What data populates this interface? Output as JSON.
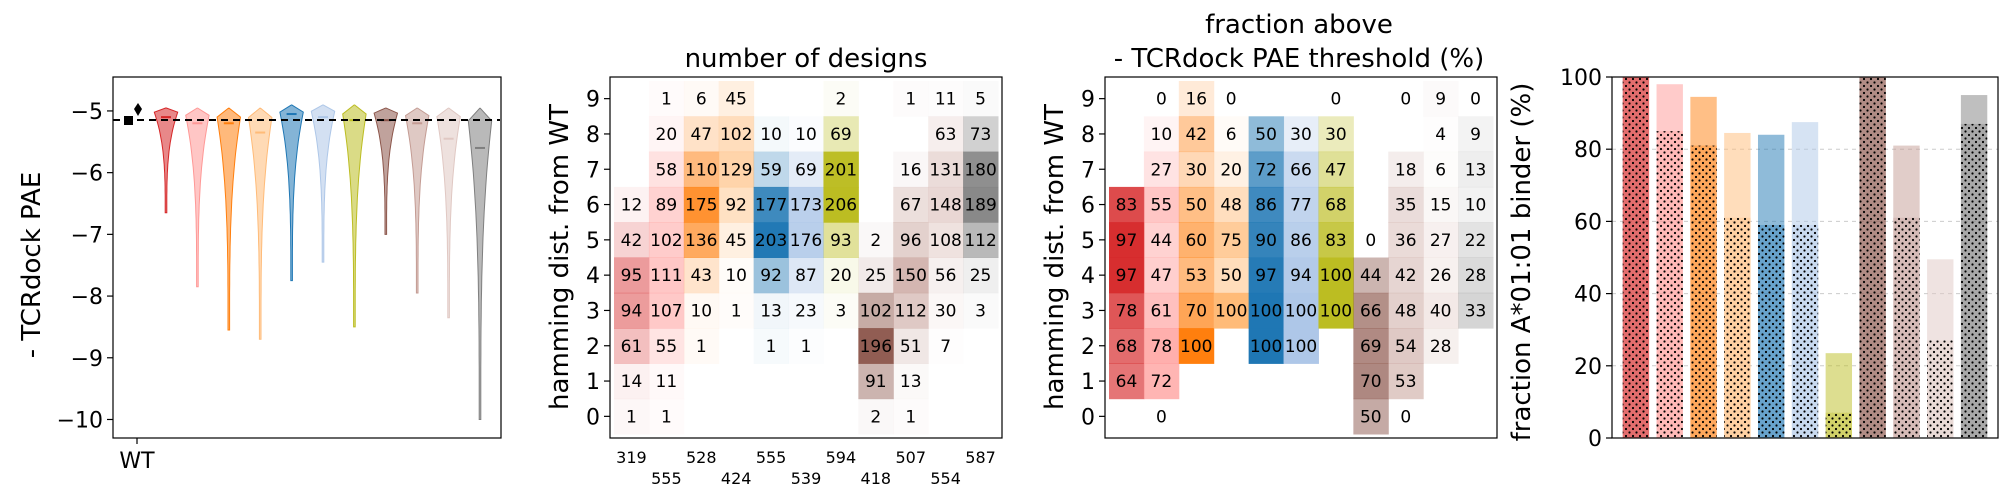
{
  "chart_data": [
    {
      "type": "violin",
      "title": "",
      "ylabel": "- TCRdock PAE",
      "ylim": [
        -10.3,
        -4.45
      ],
      "yticks": [
        -10,
        -9,
        -8,
        -7,
        -6,
        -5
      ],
      "xticks": [
        "WT"
      ],
      "wt_value": -5.18,
      "legend_markers": [
        "square",
        "diamond"
      ],
      "series": [
        {
          "color": "#d62728",
          "median": -5.1,
          "min": -6.65,
          "max": -4.95
        },
        {
          "color": "#ff9896",
          "median": -5.2,
          "min": -7.85,
          "max": -4.95
        },
        {
          "color": "#ff7f0e",
          "median": -5.2,
          "min": -8.55,
          "max": -4.95
        },
        {
          "color": "#ffbb78",
          "median": -5.35,
          "min": -8.7,
          "max": -4.95
        },
        {
          "color": "#1f77b4",
          "median": -5.05,
          "min": -7.75,
          "max": -4.9
        },
        {
          "color": "#aec7e8",
          "median": -5.1,
          "min": -7.45,
          "max": -4.9
        },
        {
          "color": "#bcbd22",
          "median": -5.15,
          "min": -8.5,
          "max": -4.9
        },
        {
          "color": "#8c564b",
          "median": -5.15,
          "min": -7.0,
          "max": -4.95
        },
        {
          "color": "#c49c94",
          "median": -5.2,
          "min": -7.95,
          "max": -4.95
        },
        {
          "color": "#e0c8c3",
          "median": -5.45,
          "min": -8.35,
          "max": -4.95
        },
        {
          "color": "#7f7f7f",
          "median": -5.6,
          "min": -10.0,
          "max": -4.95
        }
      ]
    },
    {
      "type": "heatmap",
      "title": "number of designs",
      "ylabel": "hamming dist. from WT",
      "rows": [
        0,
        1,
        2,
        3,
        4,
        5,
        6,
        7,
        8,
        9
      ],
      "column_colors": [
        "#d62728",
        "#ff9896",
        "#ff7f0e",
        "#ffbb78",
        "#1f77b4",
        "#aec7e8",
        "#bcbd22",
        "#8c564b",
        "#c49c94",
        "#e0c8c3",
        "#7f7f7f"
      ],
      "column_totals_top": [
        "319",
        "528",
        "555",
        "594",
        "507",
        "587"
      ],
      "column_totals_bottom": [
        "555",
        "424",
        "539",
        "418",
        "554"
      ],
      "values": [
        [
          1,
          14,
          61,
          94,
          95,
          42,
          12,
          null,
          null,
          null
        ],
        [
          1,
          11,
          55,
          107,
          111,
          102,
          89,
          58,
          20,
          1
        ],
        [
          null,
          null,
          1,
          10,
          43,
          136,
          175,
          110,
          47,
          6
        ],
        [
          null,
          null,
          null,
          1,
          10,
          45,
          92,
          129,
          102,
          45
        ],
        [
          null,
          null,
          1,
          13,
          92,
          203,
          177,
          59,
          10,
          null
        ],
        [
          null,
          null,
          1,
          23,
          87,
          176,
          173,
          69,
          10,
          null
        ],
        [
          null,
          null,
          null,
          3,
          20,
          93,
          206,
          201,
          69,
          2
        ],
        [
          2,
          91,
          196,
          102,
          25,
          2,
          null,
          null,
          null,
          null
        ],
        [
          1,
          13,
          51,
          112,
          150,
          96,
          67,
          16,
          null,
          1
        ],
        [
          null,
          null,
          7,
          30,
          56,
          108,
          148,
          131,
          63,
          11
        ],
        [
          null,
          null,
          null,
          3,
          25,
          112,
          189,
          180,
          73,
          5
        ]
      ]
    },
    {
      "type": "heatmap",
      "title": "fraction above",
      "subtitle": "- TCRdock PAE threshold (%)",
      "ylabel": "hamming dist. from WT",
      "rows": [
        0,
        1,
        2,
        3,
        4,
        5,
        6,
        7,
        8,
        9
      ],
      "values": [
        [
          null,
          64,
          68,
          78,
          97,
          97,
          83,
          null,
          null,
          null
        ],
        [
          0,
          72,
          78,
          61,
          47,
          44,
          55,
          27,
          10,
          0
        ],
        [
          null,
          null,
          100,
          70,
          53,
          60,
          50,
          30,
          42,
          16
        ],
        [
          null,
          null,
          null,
          100,
          50,
          75,
          48,
          20,
          6,
          0
        ],
        [
          null,
          null,
          100,
          100,
          97,
          90,
          86,
          72,
          50,
          null
        ],
        [
          null,
          null,
          100,
          100,
          94,
          86,
          77,
          66,
          30,
          null
        ],
        [
          null,
          null,
          null,
          100,
          100,
          83,
          68,
          47,
          30,
          0
        ],
        [
          50,
          70,
          69,
          66,
          44,
          0,
          null,
          null,
          null,
          null
        ],
        [
          0,
          53,
          54,
          48,
          42,
          36,
          35,
          18,
          null,
          0
        ],
        [
          null,
          null,
          28,
          40,
          26,
          27,
          15,
          6,
          4,
          9
        ],
        [
          null,
          null,
          null,
          33,
          28,
          22,
          10,
          13,
          9,
          0
        ]
      ],
      "display_values": [
        [
          "",
          "64",
          "68",
          "78",
          "97",
          "97",
          "83",
          "",
          "",
          ""
        ],
        [
          "0",
          "72",
          "78",
          "61",
          "47",
          "44",
          "55",
          "27",
          "10",
          "0"
        ],
        [
          "",
          "",
          "100",
          "70",
          "53",
          "60",
          "50",
          "30",
          "42",
          "16"
        ],
        [
          "",
          "",
          "",
          "100",
          "50",
          "75",
          "48",
          "20",
          "6",
          "0"
        ],
        [
          "",
          "",
          "100",
          "100",
          "97",
          "90",
          "86",
          "72",
          "50",
          ""
        ],
        [
          "",
          "",
          "100",
          "100",
          "94",
          "86",
          "77",
          "66",
          "30",
          ""
        ],
        [
          "",
          "",
          "",
          "100",
          "100",
          "83",
          "68",
          "47",
          "30",
          "0"
        ],
        [
          "50",
          "70",
          "69",
          "66",
          "44",
          "0",
          "",
          "",
          "",
          ""
        ],
        [
          "0",
          "53",
          "54",
          "48",
          "42",
          "36",
          "35",
          "18",
          "",
          "0"
        ],
        [
          "",
          "",
          "28",
          "40",
          "26",
          "27",
          "15",
          "6",
          "4",
          "9"
        ],
        [
          "",
          "",
          "",
          "33",
          "28",
          "22",
          "10",
          "13",
          "9",
          "0"
        ]
      ]
    },
    {
      "type": "bar",
      "ylabel": "fraction A*01:01 binder (%)",
      "ylim": [
        0,
        100
      ],
      "yticks": [
        0,
        20,
        40,
        60,
        80,
        100
      ],
      "grid": true,
      "series": [
        {
          "name": "",
          "values": [
            100,
            98,
            94.5,
            84.5,
            84,
            87.5,
            23.5,
            100,
            81,
            49.5,
            95
          ]
        },
        {
          "name": "",
          "values": [
            100,
            85,
            81,
            61,
            59,
            59,
            7,
            100,
            61,
            27,
            87
          ]
        }
      ],
      "colors": [
        "#d62728",
        "#ff9896",
        "#ff7f0e",
        "#ffbb78",
        "#1f77b4",
        "#aec7e8",
        "#bcbd22",
        "#8c564b",
        "#c49c94",
        "#e0c8c3",
        "#7f7f7f"
      ]
    }
  ]
}
